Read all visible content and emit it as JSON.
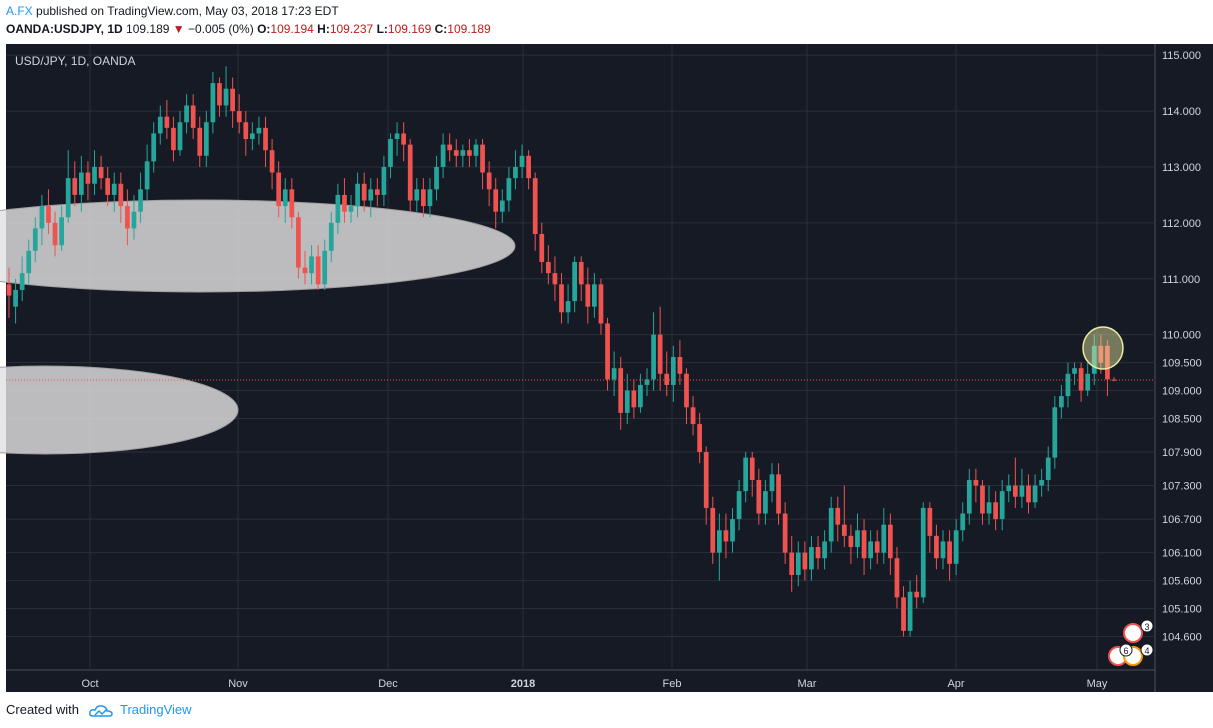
{
  "header": {
    "author": "A.FX",
    "published_text": "published on TradingView.com, May 03, 2018 17:23 EDT",
    "symbol": "OANDA:USDJPY, 1D",
    "last": "109.189",
    "change": "−0.005 (0%)",
    "o_label": "O:",
    "o": "109.194",
    "h_label": "H:",
    "h": "109.237",
    "l_label": "L:",
    "l": "109.169",
    "c_label": "C:",
    "c": "109.189"
  },
  "footer": {
    "created_with": "Created with",
    "brand": "TradingView"
  },
  "colors": {
    "background": "#161a25",
    "grid": "#2a2e39",
    "up": "#26a69a",
    "down": "#ef5350",
    "last_price_line": "#ef5350",
    "ellipse": "#e0e0e0",
    "highlight": "#e9eca0"
  },
  "chart_data": {
    "type": "candlestick",
    "title": "USD/JPY, 1D, OANDA",
    "ylim": [
      104.0,
      115.2
    ],
    "y_ticks": [
      "115.000",
      "114.000",
      "113.000",
      "112.000",
      "111.000",
      "110.000",
      "109.500",
      "109.000",
      "108.500",
      "107.900",
      "107.300",
      "106.700",
      "106.100",
      "105.600",
      "105.100",
      "104.600"
    ],
    "x_ticks": [
      "Oct",
      "Nov",
      "Dec",
      "2018",
      "Feb",
      "Mar",
      "Apr",
      "May"
    ],
    "last_price": 109.189,
    "grid": true,
    "candles": [
      {
        "o": 110.9,
        "c": 110.7,
        "h": 111.2,
        "l": 110.3
      },
      {
        "o": 110.5,
        "c": 110.8,
        "h": 111.0,
        "l": 110.2
      },
      {
        "o": 110.8,
        "c": 111.1,
        "h": 111.4,
        "l": 110.6
      },
      {
        "o": 111.1,
        "c": 111.5,
        "h": 111.7,
        "l": 110.9
      },
      {
        "o": 111.5,
        "c": 111.9,
        "h": 112.1,
        "l": 111.3
      },
      {
        "o": 111.9,
        "c": 112.3,
        "h": 112.5,
        "l": 111.6
      },
      {
        "o": 112.3,
        "c": 112.0,
        "h": 112.6,
        "l": 111.8
      },
      {
        "o": 112.0,
        "c": 111.6,
        "h": 112.2,
        "l": 111.4
      },
      {
        "o": 111.6,
        "c": 112.1,
        "h": 112.3,
        "l": 111.5
      },
      {
        "o": 112.1,
        "c": 112.8,
        "h": 113.3,
        "l": 112.0
      },
      {
        "o": 112.8,
        "c": 112.5,
        "h": 113.1,
        "l": 112.3
      },
      {
        "o": 112.5,
        "c": 112.9,
        "h": 113.2,
        "l": 112.2
      },
      {
        "o": 112.9,
        "c": 112.7,
        "h": 113.1,
        "l": 112.4
      },
      {
        "o": 112.7,
        "c": 113.0,
        "h": 113.3,
        "l": 112.5
      },
      {
        "o": 113.0,
        "c": 112.8,
        "h": 113.2,
        "l": 112.6
      },
      {
        "o": 112.8,
        "c": 112.5,
        "h": 113.0,
        "l": 112.3
      },
      {
        "o": 112.5,
        "c": 112.7,
        "h": 112.9,
        "l": 112.2
      },
      {
        "o": 112.7,
        "c": 112.3,
        "h": 112.9,
        "l": 112.0
      },
      {
        "o": 112.3,
        "c": 111.9,
        "h": 112.6,
        "l": 111.6
      },
      {
        "o": 111.9,
        "c": 112.2,
        "h": 112.5,
        "l": 111.7
      },
      {
        "o": 112.2,
        "c": 112.6,
        "h": 112.9,
        "l": 112.0
      },
      {
        "o": 112.6,
        "c": 113.1,
        "h": 113.4,
        "l": 112.4
      },
      {
        "o": 113.1,
        "c": 113.6,
        "h": 113.8,
        "l": 112.9
      },
      {
        "o": 113.6,
        "c": 113.9,
        "h": 114.1,
        "l": 113.4
      },
      {
        "o": 113.9,
        "c": 113.7,
        "h": 114.2,
        "l": 113.5
      },
      {
        "o": 113.7,
        "c": 113.3,
        "h": 113.9,
        "l": 113.1
      },
      {
        "o": 113.3,
        "c": 113.8,
        "h": 114.0,
        "l": 113.2
      },
      {
        "o": 113.8,
        "c": 114.1,
        "h": 114.3,
        "l": 113.6
      },
      {
        "o": 114.1,
        "c": 113.7,
        "h": 114.3,
        "l": 113.5
      },
      {
        "o": 113.7,
        "c": 113.2,
        "h": 113.9,
        "l": 113.0
      },
      {
        "o": 113.2,
        "c": 113.8,
        "h": 114.0,
        "l": 113.0
      },
      {
        "o": 113.8,
        "c": 114.5,
        "h": 114.7,
        "l": 113.6
      },
      {
        "o": 114.5,
        "c": 114.1,
        "h": 114.6,
        "l": 113.9
      },
      {
        "o": 114.1,
        "c": 114.4,
        "h": 114.8,
        "l": 113.9
      },
      {
        "o": 114.4,
        "c": 114.0,
        "h": 114.6,
        "l": 113.7
      },
      {
        "o": 114.0,
        "c": 113.8,
        "h": 114.3,
        "l": 113.6
      },
      {
        "o": 113.8,
        "c": 113.5,
        "h": 114.0,
        "l": 113.2
      },
      {
        "o": 113.5,
        "c": 113.6,
        "h": 113.8,
        "l": 113.3
      },
      {
        "o": 113.6,
        "c": 113.7,
        "h": 113.9,
        "l": 113.4
      },
      {
        "o": 113.7,
        "c": 113.3,
        "h": 113.9,
        "l": 113.0
      },
      {
        "o": 113.3,
        "c": 112.9,
        "h": 113.5,
        "l": 112.6
      },
      {
        "o": 112.9,
        "c": 112.3,
        "h": 113.1,
        "l": 112.1
      },
      {
        "o": 112.3,
        "c": 112.6,
        "h": 112.8,
        "l": 112.0
      },
      {
        "o": 112.6,
        "c": 112.1,
        "h": 112.8,
        "l": 111.9
      },
      {
        "o": 112.1,
        "c": 111.2,
        "h": 112.2,
        "l": 111.0
      },
      {
        "o": 111.2,
        "c": 111.1,
        "h": 111.5,
        "l": 110.9
      },
      {
        "o": 111.1,
        "c": 111.4,
        "h": 111.6,
        "l": 110.9
      },
      {
        "o": 111.4,
        "c": 110.9,
        "h": 111.6,
        "l": 110.8
      },
      {
        "o": 110.9,
        "c": 111.5,
        "h": 111.7,
        "l": 110.8
      },
      {
        "o": 111.5,
        "c": 112.0,
        "h": 112.2,
        "l": 111.3
      },
      {
        "o": 112.0,
        "c": 112.5,
        "h": 112.7,
        "l": 111.8
      },
      {
        "o": 112.5,
        "c": 112.2,
        "h": 112.8,
        "l": 112.0
      },
      {
        "o": 112.2,
        "c": 112.3,
        "h": 112.5,
        "l": 112.0
      },
      {
        "o": 112.3,
        "c": 112.7,
        "h": 112.9,
        "l": 112.1
      },
      {
        "o": 112.7,
        "c": 112.4,
        "h": 112.9,
        "l": 112.2
      },
      {
        "o": 112.4,
        "c": 112.6,
        "h": 112.8,
        "l": 112.1
      },
      {
        "o": 112.6,
        "c": 112.5,
        "h": 112.8,
        "l": 112.3
      },
      {
        "o": 112.5,
        "c": 113.0,
        "h": 113.2,
        "l": 112.3
      },
      {
        "o": 113.0,
        "c": 113.5,
        "h": 113.6,
        "l": 112.8
      },
      {
        "o": 113.5,
        "c": 113.6,
        "h": 113.8,
        "l": 113.2
      },
      {
        "o": 113.6,
        "c": 113.4,
        "h": 113.8,
        "l": 113.1
      },
      {
        "o": 113.4,
        "c": 112.4,
        "h": 113.5,
        "l": 112.2
      },
      {
        "o": 112.4,
        "c": 112.6,
        "h": 112.8,
        "l": 112.2
      },
      {
        "o": 112.6,
        "c": 112.3,
        "h": 112.8,
        "l": 112.1
      },
      {
        "o": 112.3,
        "c": 112.6,
        "h": 112.8,
        "l": 112.1
      },
      {
        "o": 112.6,
        "c": 113.0,
        "h": 113.2,
        "l": 112.4
      },
      {
        "o": 113.0,
        "c": 113.4,
        "h": 113.6,
        "l": 112.8
      },
      {
        "o": 113.4,
        "c": 113.3,
        "h": 113.6,
        "l": 113.1
      },
      {
        "o": 113.3,
        "c": 113.2,
        "h": 113.5,
        "l": 113.0
      },
      {
        "o": 113.2,
        "c": 113.3,
        "h": 113.4,
        "l": 113.0
      },
      {
        "o": 113.3,
        "c": 113.2,
        "h": 113.5,
        "l": 113.0
      },
      {
        "o": 113.2,
        "c": 113.4,
        "h": 113.5,
        "l": 113.0
      },
      {
        "o": 113.4,
        "c": 112.9,
        "h": 113.5,
        "l": 112.6
      },
      {
        "o": 112.9,
        "c": 112.6,
        "h": 113.1,
        "l": 112.3
      },
      {
        "o": 112.6,
        "c": 112.2,
        "h": 112.8,
        "l": 111.9
      },
      {
        "o": 112.2,
        "c": 112.4,
        "h": 112.6,
        "l": 112.0
      },
      {
        "o": 112.4,
        "c": 112.8,
        "h": 113.0,
        "l": 112.2
      },
      {
        "o": 112.8,
        "c": 113.0,
        "h": 113.3,
        "l": 112.6
      },
      {
        "o": 113.0,
        "c": 113.2,
        "h": 113.4,
        "l": 112.8
      },
      {
        "o": 113.2,
        "c": 112.8,
        "h": 113.3,
        "l": 112.6
      },
      {
        "o": 112.8,
        "c": 111.8,
        "h": 112.9,
        "l": 111.5
      },
      {
        "o": 111.8,
        "c": 111.3,
        "h": 112.0,
        "l": 111.1
      },
      {
        "o": 111.3,
        "c": 111.1,
        "h": 111.6,
        "l": 110.9
      },
      {
        "o": 111.1,
        "c": 110.9,
        "h": 111.4,
        "l": 110.6
      },
      {
        "o": 110.9,
        "c": 110.4,
        "h": 111.1,
        "l": 110.2
      },
      {
        "o": 110.4,
        "c": 110.6,
        "h": 110.9,
        "l": 110.2
      },
      {
        "o": 110.6,
        "c": 111.3,
        "h": 111.4,
        "l": 110.4
      },
      {
        "o": 111.3,
        "c": 110.9,
        "h": 111.4,
        "l": 110.6
      },
      {
        "o": 110.9,
        "c": 110.5,
        "h": 111.2,
        "l": 110.2
      },
      {
        "o": 110.5,
        "c": 110.9,
        "h": 111.1,
        "l": 110.3
      },
      {
        "o": 110.9,
        "c": 110.2,
        "h": 111.0,
        "l": 110.0
      },
      {
        "o": 110.2,
        "c": 109.2,
        "h": 110.3,
        "l": 109.0
      },
      {
        "o": 109.2,
        "c": 109.4,
        "h": 109.7,
        "l": 108.9
      },
      {
        "o": 109.4,
        "c": 108.6,
        "h": 109.6,
        "l": 108.3
      },
      {
        "o": 108.6,
        "c": 109.0,
        "h": 109.3,
        "l": 108.4
      },
      {
        "o": 109.0,
        "c": 108.7,
        "h": 109.2,
        "l": 108.5
      },
      {
        "o": 108.7,
        "c": 109.1,
        "h": 109.3,
        "l": 108.6
      },
      {
        "o": 109.1,
        "c": 109.2,
        "h": 109.4,
        "l": 108.9
      },
      {
        "o": 109.2,
        "c": 110.0,
        "h": 110.4,
        "l": 109.0
      },
      {
        "o": 110.0,
        "c": 109.3,
        "h": 110.5,
        "l": 109.0
      },
      {
        "o": 109.3,
        "c": 109.1,
        "h": 109.7,
        "l": 108.9
      },
      {
        "o": 109.1,
        "c": 109.6,
        "h": 109.8,
        "l": 108.8
      },
      {
        "o": 109.6,
        "c": 109.3,
        "h": 109.9,
        "l": 109.1
      },
      {
        "o": 109.3,
        "c": 108.7,
        "h": 109.4,
        "l": 108.4
      },
      {
        "o": 108.7,
        "c": 108.4,
        "h": 108.9,
        "l": 108.2
      },
      {
        "o": 108.4,
        "c": 107.9,
        "h": 108.6,
        "l": 107.7
      },
      {
        "o": 107.9,
        "c": 106.9,
        "h": 108.0,
        "l": 106.6
      },
      {
        "o": 106.9,
        "c": 106.1,
        "h": 107.1,
        "l": 105.9
      },
      {
        "o": 106.1,
        "c": 106.5,
        "h": 106.8,
        "l": 105.6
      },
      {
        "o": 106.5,
        "c": 106.3,
        "h": 106.8,
        "l": 106.0
      },
      {
        "o": 106.3,
        "c": 106.7,
        "h": 106.9,
        "l": 106.1
      },
      {
        "o": 106.7,
        "c": 107.2,
        "h": 107.4,
        "l": 106.5
      },
      {
        "o": 107.2,
        "c": 107.8,
        "h": 107.9,
        "l": 107.0
      },
      {
        "o": 107.8,
        "c": 107.4,
        "h": 107.9,
        "l": 107.1
      },
      {
        "o": 107.4,
        "c": 106.8,
        "h": 107.6,
        "l": 106.6
      },
      {
        "o": 106.8,
        "c": 107.2,
        "h": 107.4,
        "l": 106.6
      },
      {
        "o": 107.2,
        "c": 107.5,
        "h": 107.7,
        "l": 107.0
      },
      {
        "o": 107.5,
        "c": 106.8,
        "h": 107.7,
        "l": 106.6
      },
      {
        "o": 106.8,
        "c": 106.1,
        "h": 107.0,
        "l": 105.9
      },
      {
        "o": 106.1,
        "c": 105.7,
        "h": 106.4,
        "l": 105.4
      },
      {
        "o": 105.7,
        "c": 106.1,
        "h": 106.3,
        "l": 105.5
      },
      {
        "o": 106.1,
        "c": 105.8,
        "h": 106.3,
        "l": 105.6
      },
      {
        "o": 105.8,
        "c": 106.2,
        "h": 106.4,
        "l": 105.6
      },
      {
        "o": 106.2,
        "c": 106.0,
        "h": 106.4,
        "l": 105.8
      },
      {
        "o": 106.0,
        "c": 106.3,
        "h": 106.5,
        "l": 105.8
      },
      {
        "o": 106.3,
        "c": 106.9,
        "h": 107.1,
        "l": 106.1
      },
      {
        "o": 106.9,
        "c": 106.6,
        "h": 107.1,
        "l": 106.3
      },
      {
        "o": 106.6,
        "c": 106.4,
        "h": 107.3,
        "l": 106.2
      },
      {
        "o": 106.4,
        "c": 106.2,
        "h": 106.6,
        "l": 105.9
      },
      {
        "o": 106.2,
        "c": 106.5,
        "h": 106.8,
        "l": 106.0
      },
      {
        "o": 106.5,
        "c": 106.0,
        "h": 106.7,
        "l": 105.7
      },
      {
        "o": 106.0,
        "c": 106.3,
        "h": 106.5,
        "l": 105.8
      },
      {
        "o": 106.3,
        "c": 106.1,
        "h": 106.5,
        "l": 105.9
      },
      {
        "o": 106.1,
        "c": 106.6,
        "h": 106.9,
        "l": 105.9
      },
      {
        "o": 106.6,
        "c": 106.0,
        "h": 106.8,
        "l": 105.7
      },
      {
        "o": 106.0,
        "c": 105.3,
        "h": 106.2,
        "l": 105.1
      },
      {
        "o": 105.3,
        "c": 104.7,
        "h": 105.5,
        "l": 104.6
      },
      {
        "o": 104.7,
        "c": 105.4,
        "h": 105.6,
        "l": 104.6
      },
      {
        "o": 105.4,
        "c": 105.3,
        "h": 105.7,
        "l": 105.1
      },
      {
        "o": 105.3,
        "c": 106.9,
        "h": 107.0,
        "l": 105.2
      },
      {
        "o": 106.9,
        "c": 106.4,
        "h": 107.0,
        "l": 106.1
      },
      {
        "o": 106.4,
        "c": 106.0,
        "h": 106.6,
        "l": 105.8
      },
      {
        "o": 106.0,
        "c": 106.3,
        "h": 106.5,
        "l": 105.8
      },
      {
        "o": 106.3,
        "c": 105.9,
        "h": 106.5,
        "l": 105.6
      },
      {
        "o": 105.9,
        "c": 106.5,
        "h": 106.7,
        "l": 105.7
      },
      {
        "o": 106.5,
        "c": 106.8,
        "h": 107.0,
        "l": 106.3
      },
      {
        "o": 106.8,
        "c": 107.4,
        "h": 107.6,
        "l": 106.6
      },
      {
        "o": 107.4,
        "c": 107.3,
        "h": 107.6,
        "l": 107.0
      },
      {
        "o": 107.3,
        "c": 106.8,
        "h": 107.4,
        "l": 106.6
      },
      {
        "o": 106.8,
        "c": 107.0,
        "h": 107.3,
        "l": 106.6
      },
      {
        "o": 107.0,
        "c": 106.7,
        "h": 107.2,
        "l": 106.5
      },
      {
        "o": 106.7,
        "c": 107.2,
        "h": 107.4,
        "l": 106.5
      },
      {
        "o": 107.2,
        "c": 107.3,
        "h": 107.5,
        "l": 107.0
      },
      {
        "o": 107.3,
        "c": 107.1,
        "h": 107.8,
        "l": 106.9
      },
      {
        "o": 107.1,
        "c": 107.3,
        "h": 107.6,
        "l": 106.9
      },
      {
        "o": 107.3,
        "c": 107.0,
        "h": 107.5,
        "l": 106.8
      },
      {
        "o": 107.0,
        "c": 107.3,
        "h": 107.5,
        "l": 106.9
      },
      {
        "o": 107.3,
        "c": 107.4,
        "h": 107.6,
        "l": 107.1
      },
      {
        "o": 107.4,
        "c": 107.8,
        "h": 108.0,
        "l": 107.2
      },
      {
        "o": 107.8,
        "c": 108.7,
        "h": 108.9,
        "l": 107.6
      },
      {
        "o": 108.7,
        "c": 108.9,
        "h": 109.1,
        "l": 108.5
      },
      {
        "o": 108.9,
        "c": 109.3,
        "h": 109.5,
        "l": 108.7
      },
      {
        "o": 109.3,
        "c": 109.4,
        "h": 109.5,
        "l": 109.1
      },
      {
        "o": 109.4,
        "c": 109.0,
        "h": 109.5,
        "l": 108.8
      },
      {
        "o": 109.0,
        "c": 109.3,
        "h": 109.5,
        "l": 108.9
      },
      {
        "o": 109.3,
        "c": 109.8,
        "h": 110.0,
        "l": 109.1
      },
      {
        "o": 109.8,
        "c": 109.5,
        "h": 110.0,
        "l": 109.3
      },
      {
        "o": 109.8,
        "c": 109.2,
        "h": 109.9,
        "l": 108.9
      },
      {
        "o": 109.194,
        "c": 109.189,
        "h": 109.237,
        "l": 109.169
      }
    ]
  }
}
